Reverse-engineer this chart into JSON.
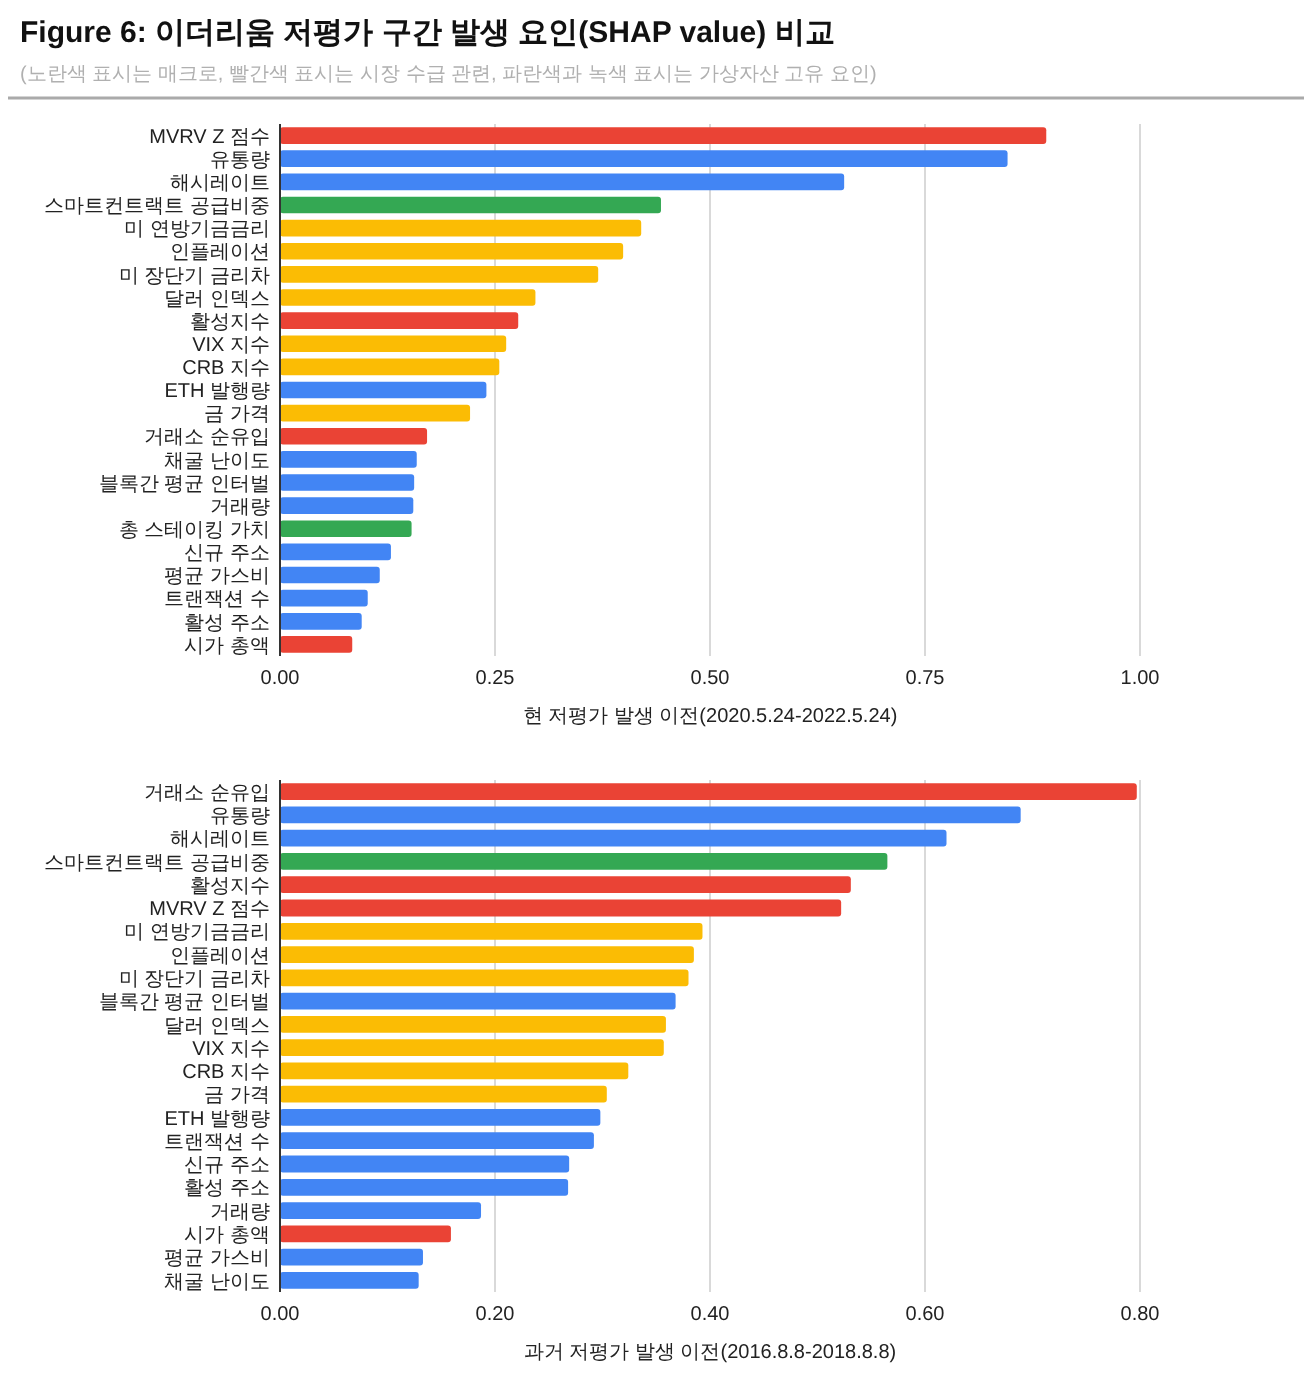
{
  "chart_data": [
    {
      "type": "bar",
      "orientation": "horizontal",
      "title": "Figure 6: 이더리움 저평가 구간 발생 요인(SHAP value) 비교",
      "subtitle": "(노란색 표시는 매크로, 빨간색 표시는 시장 수급 관련, 파란색과 녹색 표시는 가상자산 고유 요인)",
      "xlabel": "현 저평가 발생 이전(2020.5.24-2022.5.24)",
      "categories": [
        "MVRV Z 점수",
        "유통량",
        "해시레이트",
        "스마트컨트랙트 공급비중",
        "미 연방기금금리",
        "인플레이션",
        "미 장단기 금리차",
        "달러 인덱스",
        "활성지수",
        "VIX 지수",
        "CRB 지수",
        "ETH 발행량",
        "금 가격",
        "거래소 순유입",
        "채굴 난이도",
        "블록간 평균 인터벌",
        "거래량",
        "총 스테이킹 가치",
        "신규 주소",
        "평균 가스비",
        "트랜잭션 수",
        "활성 주소",
        "시가 총액"
      ],
      "values": [
        0.891,
        0.846,
        0.656,
        0.443,
        0.42,
        0.399,
        0.37,
        0.297,
        0.277,
        0.263,
        0.255,
        0.24,
        0.221,
        0.171,
        0.159,
        0.156,
        0.155,
        0.153,
        0.129,
        0.116,
        0.102,
        0.095,
        0.084
      ],
      "colors": [
        "#ea4335",
        "#4285f4",
        "#4285f4",
        "#34a853",
        "#fbbc04",
        "#fbbc04",
        "#fbbc04",
        "#fbbc04",
        "#ea4335",
        "#fbbc04",
        "#fbbc04",
        "#4285f4",
        "#fbbc04",
        "#ea4335",
        "#4285f4",
        "#4285f4",
        "#4285f4",
        "#34a853",
        "#4285f4",
        "#4285f4",
        "#4285f4",
        "#4285f4",
        "#ea4335"
      ],
      "xlim": [
        0,
        1
      ],
      "xticks": [
        {
          "value": 0,
          "label": "0.00"
        },
        {
          "value": 0.25,
          "label": "0.25"
        },
        {
          "value": 0.5,
          "label": "0.50"
        },
        {
          "value": 0.75,
          "label": "0.75"
        },
        {
          "value": 1,
          "label": "1.00"
        }
      ],
      "grid": "x"
    },
    {
      "type": "bar",
      "orientation": "horizontal",
      "xlabel": "과거 저평가 발생 이전(2016.8.8-2018.8.8)",
      "categories": [
        "거래소 순유입",
        "유통량",
        "해시레이트",
        "스마트컨트랙트 공급비중",
        "활성지수",
        "MVRV Z 점수",
        "미 연방기금금리",
        "인플레이션",
        "미 장단기 금리차",
        "블록간 평균 인터벌",
        "달러 인덱스",
        "VIX 지수",
        "CRB 지수",
        "금 가격",
        "ETH 발행량",
        "트랜잭션 수",
        "신규 주소",
        "활성 주소",
        "거래량",
        "시가 총액",
        "평균 가스비",
        "채굴 난이도"
      ],
      "values": [
        0.797,
        0.689,
        0.62,
        0.565,
        0.531,
        0.522,
        0.393,
        0.385,
        0.38,
        0.368,
        0.359,
        0.357,
        0.324,
        0.304,
        0.298,
        0.292,
        0.269,
        0.268,
        0.187,
        0.159,
        0.133,
        0.129
      ],
      "colors": [
        "#ea4335",
        "#4285f4",
        "#4285f4",
        "#34a853",
        "#ea4335",
        "#ea4335",
        "#fbbc04",
        "#fbbc04",
        "#fbbc04",
        "#4285f4",
        "#fbbc04",
        "#fbbc04",
        "#fbbc04",
        "#fbbc04",
        "#4285f4",
        "#4285f4",
        "#4285f4",
        "#4285f4",
        "#4285f4",
        "#ea4335",
        "#4285f4",
        "#4285f4"
      ],
      "xlim": [
        0,
        0.8
      ],
      "xticks": [
        {
          "value": 0,
          "label": "0.00"
        },
        {
          "value": 0.2,
          "label": "0.20"
        },
        {
          "value": 0.4,
          "label": "0.40"
        },
        {
          "value": 0.6,
          "label": "0.60"
        },
        {
          "value": 0.8,
          "label": "0.80"
        }
      ],
      "grid": "x"
    }
  ]
}
